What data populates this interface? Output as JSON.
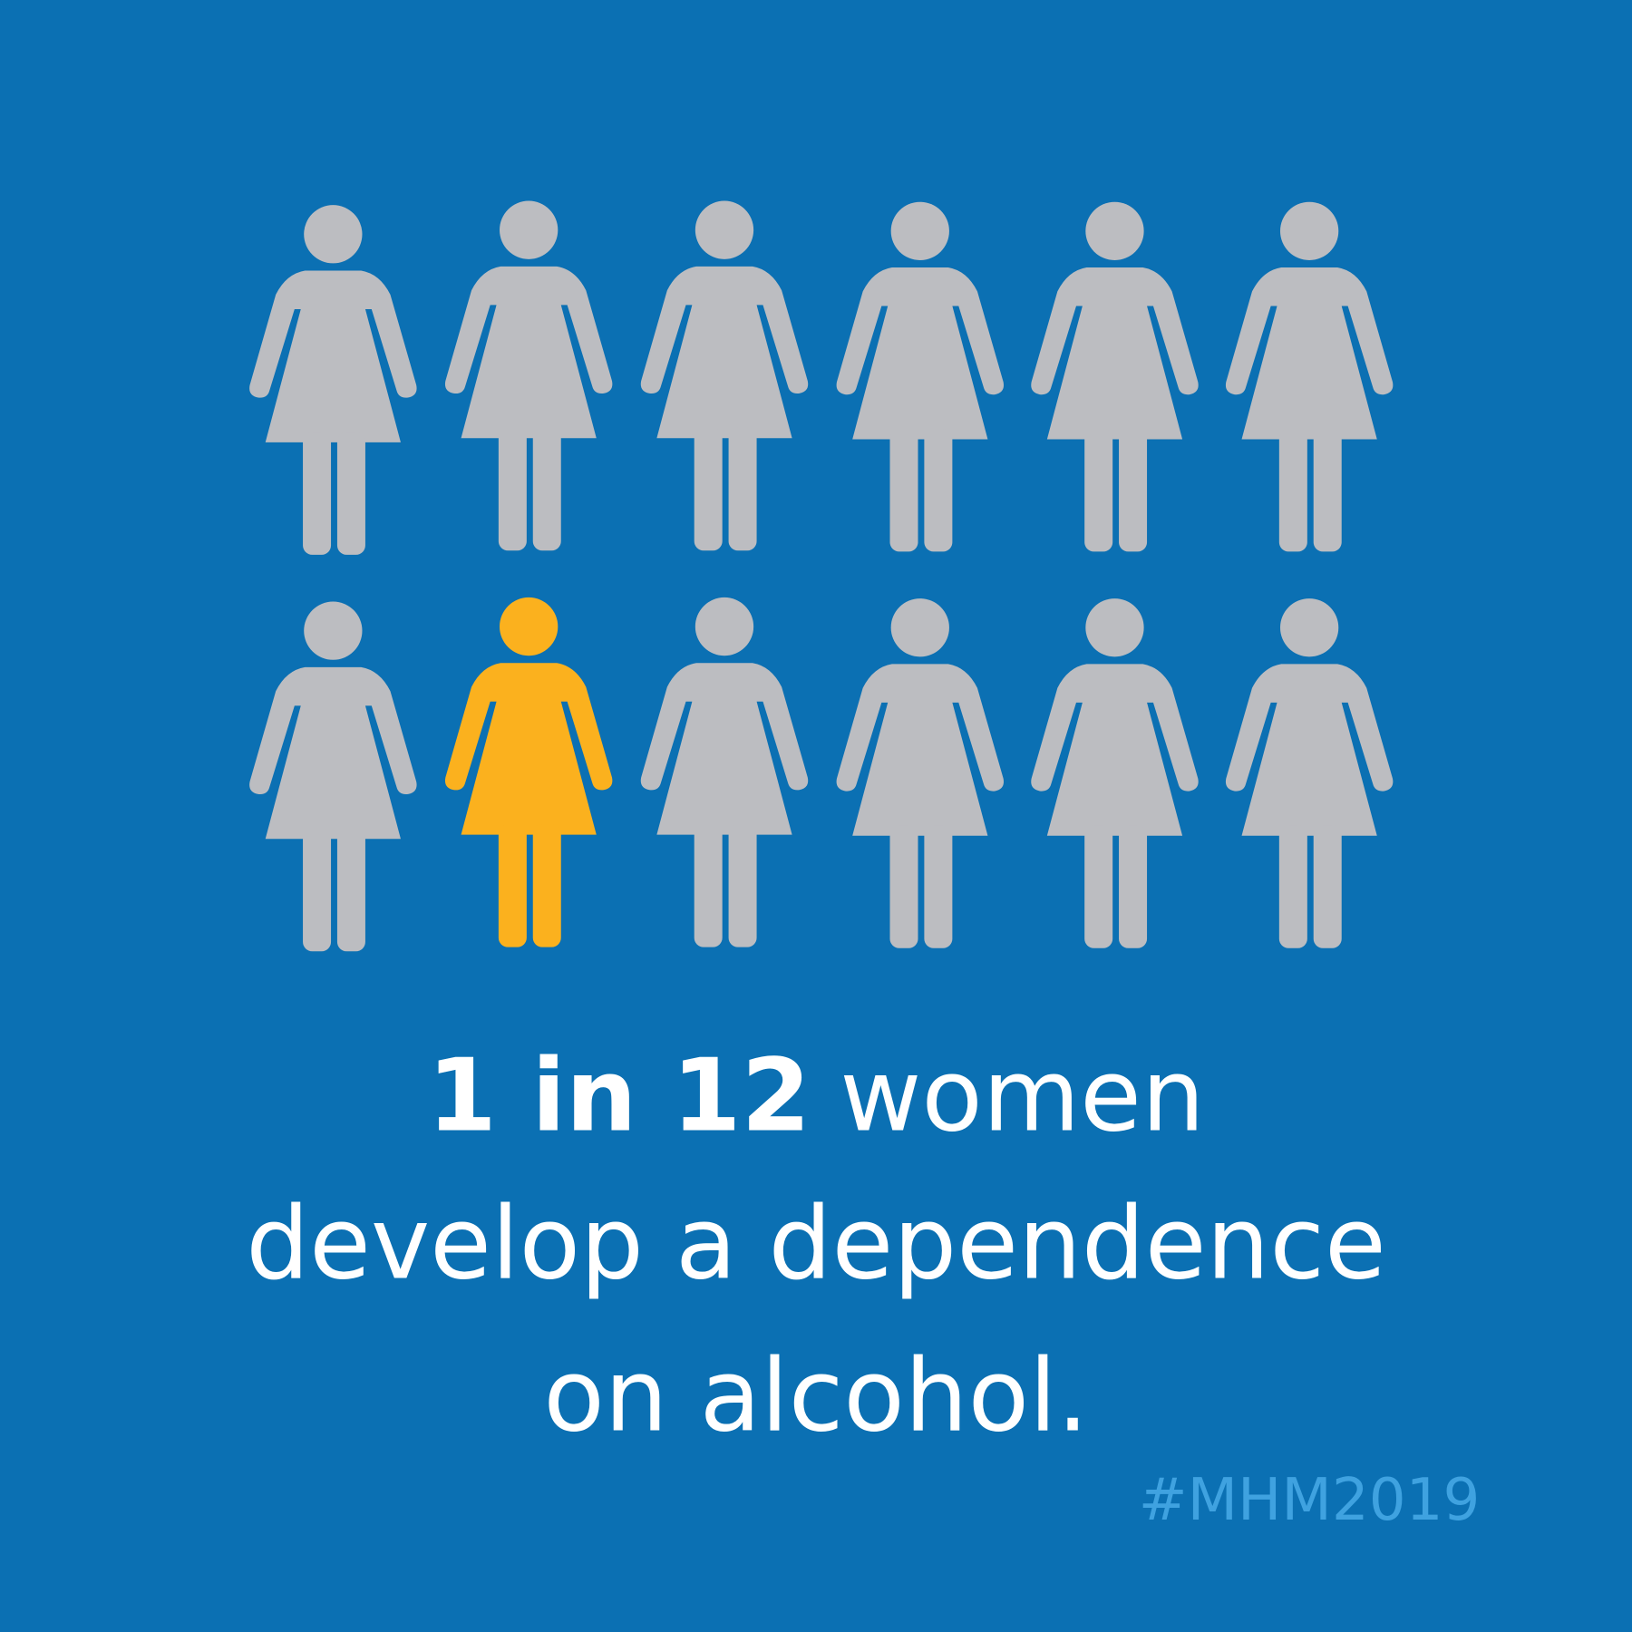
{
  "headline": {
    "emphasis": "1 in 12",
    "text": "women"
  },
  "lines": [
    "develop a dependence",
    "on alcohol."
  ],
  "hashtag": "#MHM2019"
}
